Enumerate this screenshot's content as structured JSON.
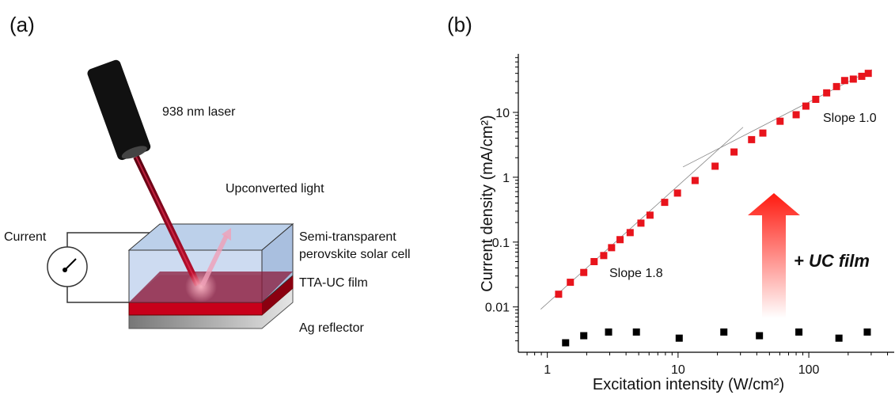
{
  "figure": {
    "panel_a": {
      "label": "(a)",
      "laser": "938 nm laser",
      "upconverted": "Upconverted light",
      "current": "Current",
      "cell": [
        "Semi-transparent",
        "perovskite solar cell"
      ],
      "film": "TTA-UC film",
      "reflector": "Ag reflector"
    }
  },
  "chart_data": {
    "type": "scatter",
    "panel_label": "(b)",
    "xlabel": "Excitation intensity (W/cm²)",
    "ylabel": "Current density (mA/cm²)",
    "xlog": true,
    "ylog": true,
    "xlim": [
      0.6,
      450
    ],
    "ylim": [
      0.002,
      80
    ],
    "xticks": [
      1,
      10,
      100
    ],
    "yticks": [
      0.01,
      0.1,
      1,
      10
    ],
    "x_minor_ticks": [
      0.7,
      0.8,
      0.9,
      2,
      3,
      4,
      5,
      6,
      7,
      8,
      9,
      20,
      30,
      40,
      50,
      60,
      70,
      80,
      90,
      200,
      300,
      400
    ],
    "y_minor_ticks": [
      0.003,
      0.004,
      0.005,
      0.006,
      0.007,
      0.008,
      0.009,
      0.02,
      0.03,
      0.04,
      0.05,
      0.06,
      0.07,
      0.08,
      0.09,
      0.2,
      0.3,
      0.4,
      0.5,
      0.6,
      0.7,
      0.8,
      0.9,
      2,
      3,
      4,
      5,
      6,
      7,
      8,
      9,
      20,
      30,
      40,
      50,
      60,
      70
    ],
    "series": [
      {
        "color": "#e8141c",
        "x": [
          1.22,
          1.5,
          1.9,
          2.28,
          2.7,
          3.1,
          3.6,
          4.3,
          5.2,
          6.1,
          7.9,
          9.9,
          13.5,
          19.2,
          26.8,
          36.5,
          44.5,
          60.3,
          80,
          95,
          113,
          137,
          163,
          188,
          219,
          254,
          285
        ],
        "values": [
          0.0157,
          0.024,
          0.034,
          0.05,
          0.062,
          0.082,
          0.109,
          0.14,
          0.196,
          0.26,
          0.41,
          0.57,
          0.89,
          1.48,
          2.45,
          3.8,
          4.8,
          7.3,
          9.2,
          12.5,
          15.9,
          20,
          25,
          31,
          32.6,
          36,
          40
        ]
      },
      {
        "color": "#000000",
        "x": [
          1.38,
          1.9,
          2.94,
          4.8,
          10.2,
          22.4,
          41.9,
          84,
          170,
          280
        ],
        "values": [
          0.0028,
          0.0036,
          0.0041,
          0.0041,
          0.0033,
          0.0041,
          0.0036,
          0.0041,
          0.0033,
          0.0041
        ]
      }
    ],
    "fit_lines": [
      {
        "color": "#888888",
        "x": [
          0.89,
          31.4
        ],
        "values": [
          0.0092,
          5.9
        ]
      },
      {
        "color": "#888888",
        "x": [
          10.9,
          304
        ],
        "values": [
          1.44,
          45.7
        ]
      }
    ],
    "annotations": [
      "Slope 1.8",
      "Slope 1.0",
      "+ UC film"
    ]
  }
}
